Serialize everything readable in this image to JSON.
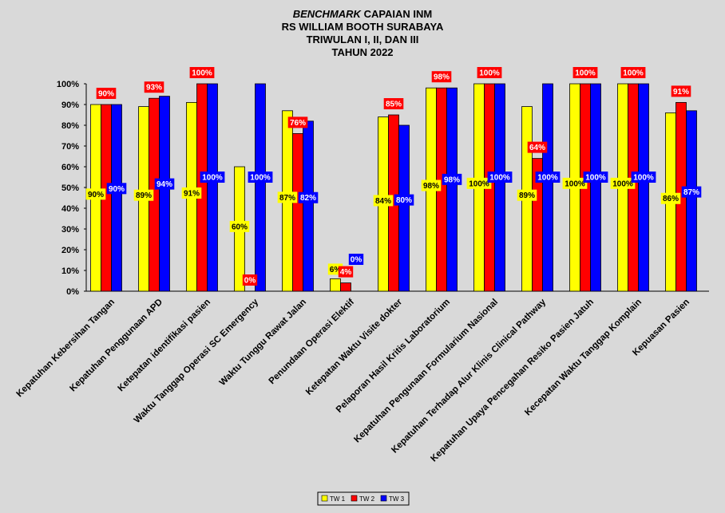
{
  "chart_data": {
    "type": "bar",
    "title_italic": "BENCHMARK",
    "title_rest": "CAPAIAN INM",
    "subtitle_lines": [
      "RS WILLIAM BOOTH SURABAYA",
      "TRIWULAN I, II, DAN III",
      "TAHUN 2022"
    ],
    "ylim": [
      0,
      100
    ],
    "yticks": [
      "0%",
      "10%",
      "20%",
      "30%",
      "40%",
      "50%",
      "60%",
      "70%",
      "80%",
      "90%",
      "100%"
    ],
    "categories": [
      "Kepatuhan Kebersihan Tangan",
      "Kepatuhan Penggunaan APD",
      "Ketepatan identifikasi pasien",
      "Waktu Tanggap Operasi SC Emergency",
      "Waktu Tunggu Rawat Jalan",
      "Penundaan Operasi Elektif",
      "Ketepatan Waktu Visite dokter",
      "Pelaporan Hasil Kritis Laboratorium",
      "Kepatuhan Pengunaan Formularium Nasional",
      "Kepatuhan Terhadap Alur Klinis Clinical Pathway",
      "Kepatuhan Upaya Pencegahan Resiko Pasien Jatuh",
      "Kecepatan Waktu Tanggap Komplain",
      "Kepuasan Pasien"
    ],
    "series": [
      {
        "name": "TW 1",
        "color": "#ffff00",
        "values": [
          90,
          89,
          91,
          60,
          87,
          6,
          84,
          98,
          100,
          89,
          100,
          100,
          86
        ],
        "labels": [
          "90%",
          "89%",
          "91%",
          "60%",
          "87%",
          "6%",
          "84%",
          "98%",
          "100%",
          "89%",
          "100%",
          "100%",
          "86%"
        ]
      },
      {
        "name": "TW 2",
        "color": "#ff0000",
        "values": [
          90,
          93,
          100,
          0,
          76,
          4,
          85,
          98,
          100,
          64,
          100,
          100,
          91
        ],
        "labels": [
          "90%",
          "93%",
          "100%",
          "0%",
          "76%",
          "4%",
          "85%",
          "98%",
          "100%",
          "64%",
          "100%",
          "100%",
          "91%"
        ]
      },
      {
        "name": "TW 3",
        "color": "#0000ff",
        "values": [
          90,
          94,
          100,
          100,
          82,
          0,
          80,
          98,
          100,
          100,
          100,
          100,
          87
        ],
        "labels": [
          "90%",
          "94%",
          "100%",
          "100%",
          "82%",
          "0%",
          "80%",
          "98%",
          "100%",
          "100%",
          "100%",
          "100%",
          "87%"
        ]
      }
    ],
    "legend_position": "bottom"
  }
}
